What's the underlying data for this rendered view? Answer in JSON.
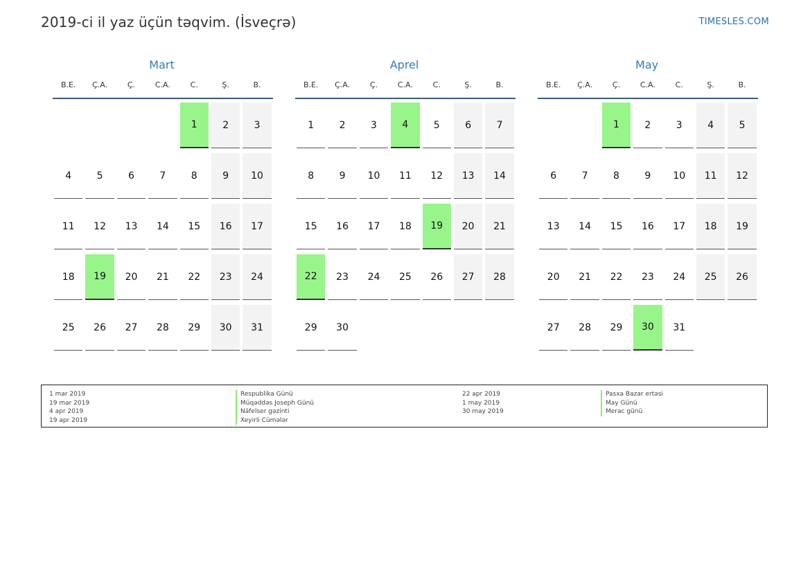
{
  "header": {
    "title": "2019-ci il yaz üçün təqvim. (İsveçrə)",
    "site": "TIMESLES.COM"
  },
  "weekdays": [
    "B.E.",
    "Ç.A.",
    "Ç.",
    "C.A.",
    "C.",
    "Ş.",
    "B."
  ],
  "months": [
    {
      "name": "Mart",
      "start_offset": 4,
      "days": 31,
      "holidays": [
        1,
        19
      ]
    },
    {
      "name": "Aprel",
      "start_offset": 0,
      "days": 30,
      "holidays": [
        4,
        19,
        22
      ]
    },
    {
      "name": "May",
      "start_offset": 2,
      "days": 31,
      "holidays": [
        1,
        30
      ]
    }
  ],
  "legend": {
    "left_dates": [
      "1 mar 2019",
      "19 mar 2019",
      "4 apr 2019",
      "19 apr 2019"
    ],
    "left_names": [
      "Respublika Günü",
      "Müqəddəs Joseph Günü",
      "Näfelser gəzinti",
      "Xeyirli Cümələr"
    ],
    "right_dates": [
      "22 apr 2019",
      "1 may 2019",
      "30 may 2019"
    ],
    "right_names": [
      "Pasxa Bazar ertəsi",
      "May Günü",
      "Merac günü"
    ]
  },
  "colors": {
    "holiday": "#98f58a",
    "weekend": "#f3f3f3",
    "month_title": "#2f7bbf"
  }
}
